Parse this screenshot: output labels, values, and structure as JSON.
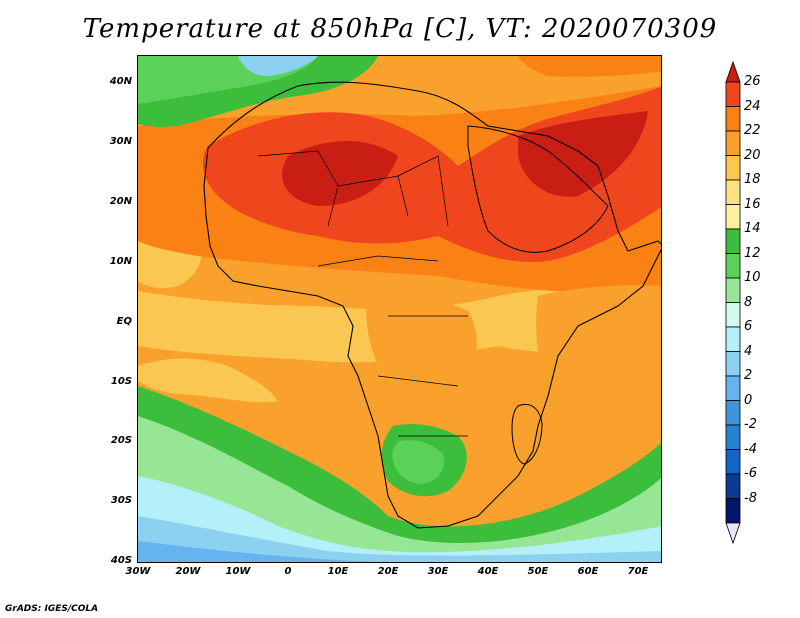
{
  "title": "Temperature at 850hPa [C], VT: 2020070309",
  "credit": "GrADS: IGES/COLA",
  "map": {
    "type": "filled-contour",
    "variable": "temperature",
    "level": "850hPa",
    "units": "C",
    "region": "Africa",
    "lat_range": [
      -40,
      45
    ],
    "lon_range": [
      -30,
      75
    ],
    "lat_ticks": [
      "40N",
      "30N",
      "20N",
      "10N",
      "EQ",
      "10S",
      "20S",
      "30S",
      "40S"
    ],
    "lon_ticks": [
      "30W",
      "20W",
      "10W",
      "0",
      "10E",
      "20E",
      "30E",
      "40E",
      "50E",
      "60E",
      "70E"
    ]
  },
  "colorbar": {
    "labels": [
      "26",
      "24",
      "22",
      "20",
      "18",
      "16",
      "14",
      "12",
      "10",
      "8",
      "6",
      "4",
      "2",
      "0",
      "-2",
      "-4",
      "-6",
      "-8"
    ],
    "colors": [
      "#f0461e",
      "#fa8214",
      "#faa02d",
      "#fac850",
      "#fae282",
      "#faf0a0",
      "#3cbe3c",
      "#5ad25a",
      "#96e696",
      "#d2faf0",
      "#b4f0fa",
      "#8cd2f0",
      "#64b4f0",
      "#3c96dc",
      "#2882d2",
      "#1464c8",
      "#0a3c96",
      "#06146e"
    ],
    "top_arrow_color": "#c81e14",
    "bottom_arrow_color": "#e6e6fa"
  }
}
